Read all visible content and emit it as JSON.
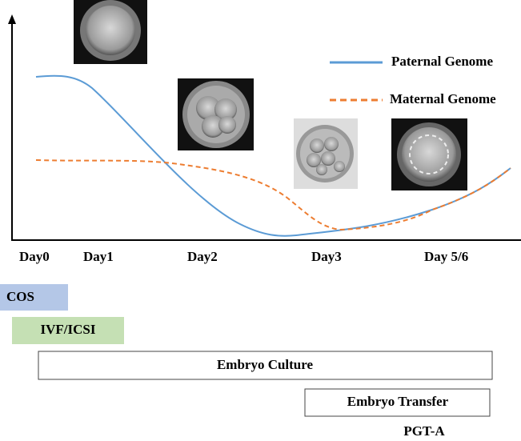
{
  "legend": [
    "Paternal Genome",
    "Maternal Genome"
  ],
  "days": [
    "Day0",
    "Day1",
    "Day2",
    "Day3",
    "Day 5/6"
  ],
  "stages": [
    "COS",
    "IVF/ICSI",
    "Embryo Culture",
    "Embryo Transfer",
    "PGT-A"
  ]
}
